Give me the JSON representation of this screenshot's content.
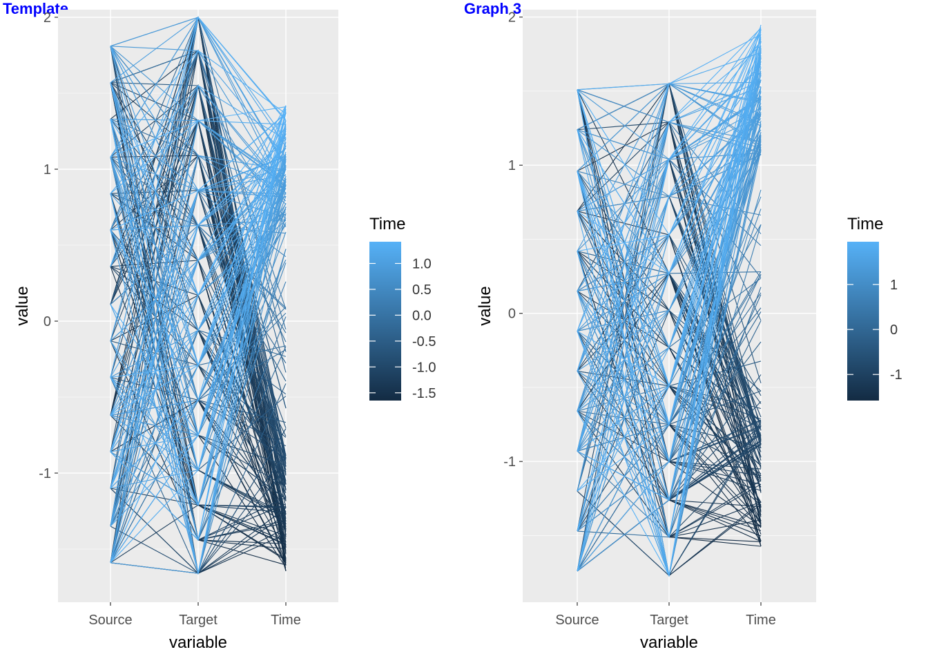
{
  "colors": {
    "panel_bg": "#EBEBEB",
    "grid_major": "#FFFFFF",
    "axis_text": "#4D4D4D",
    "title_blue": "#0000FF",
    "gradient_low": "#132B43",
    "gradient_high": "#56B1F7"
  },
  "chart_data": [
    {
      "type": "line",
      "subtype": "parallel-coordinates",
      "title": "Template",
      "xlabel": "variable",
      "ylabel": "value",
      "categories": [
        "Source",
        "Target",
        "Time"
      ],
      "ylim": [
        -1.85,
        2.05
      ],
      "yticks": [
        2,
        1,
        0,
        -1
      ],
      "grid": true,
      "legend": {
        "title": "Time",
        "placement": "right",
        "range": [
          -1.65,
          1.42
        ],
        "ticks": [
          1.0,
          0.5,
          0.0,
          -0.5,
          -1.0,
          -1.5
        ],
        "tick_labels": [
          "1.0",
          "0.5",
          "0.0",
          "-0.5",
          "-1.0",
          "-1.5"
        ]
      },
      "source_levels": [
        1.81,
        1.57,
        1.33,
        1.08,
        0.84,
        0.6,
        0.36,
        0.11,
        -0.13,
        -0.37,
        -0.62,
        -0.86,
        -1.1,
        -1.35,
        -1.59
      ],
      "target_levels": [
        2.0,
        1.78,
        1.55,
        1.32,
        1.09,
        0.86,
        0.63,
        0.4,
        0.17,
        -0.06,
        -0.29,
        -0.52,
        -0.75,
        -0.98,
        -1.21,
        -1.44,
        -1.66
      ],
      "time_range": [
        -1.65,
        1.42
      ],
      "line_count": 260,
      "seed": 7
    },
    {
      "type": "line",
      "subtype": "parallel-coordinates",
      "title": "Graph 3",
      "xlabel": "variable",
      "ylabel": "value",
      "categories": [
        "Source",
        "Target",
        "Time"
      ],
      "ylim": [
        -1.95,
        2.05
      ],
      "yticks": [
        2,
        1,
        0,
        -1
      ],
      "grid": true,
      "legend": {
        "title": "Time",
        "placement": "right",
        "range": [
          -1.58,
          1.95
        ],
        "ticks": [
          1,
          0,
          -1
        ],
        "tick_labels": [
          "1",
          "0",
          "-1"
        ]
      },
      "source_levels": [
        1.51,
        1.24,
        0.96,
        0.69,
        0.42,
        0.15,
        -0.12,
        -0.39,
        -0.66,
        -0.93,
        -1.2,
        -1.47,
        -1.74
      ],
      "target_levels": [
        1.55,
        1.29,
        1.04,
        0.79,
        0.53,
        0.27,
        0.02,
        -0.23,
        -0.49,
        -0.75,
        -1.0,
        -1.26,
        -1.51,
        -1.77
      ],
      "time_range": [
        -1.58,
        1.95
      ],
      "line_count": 240,
      "seed": 13
    }
  ]
}
